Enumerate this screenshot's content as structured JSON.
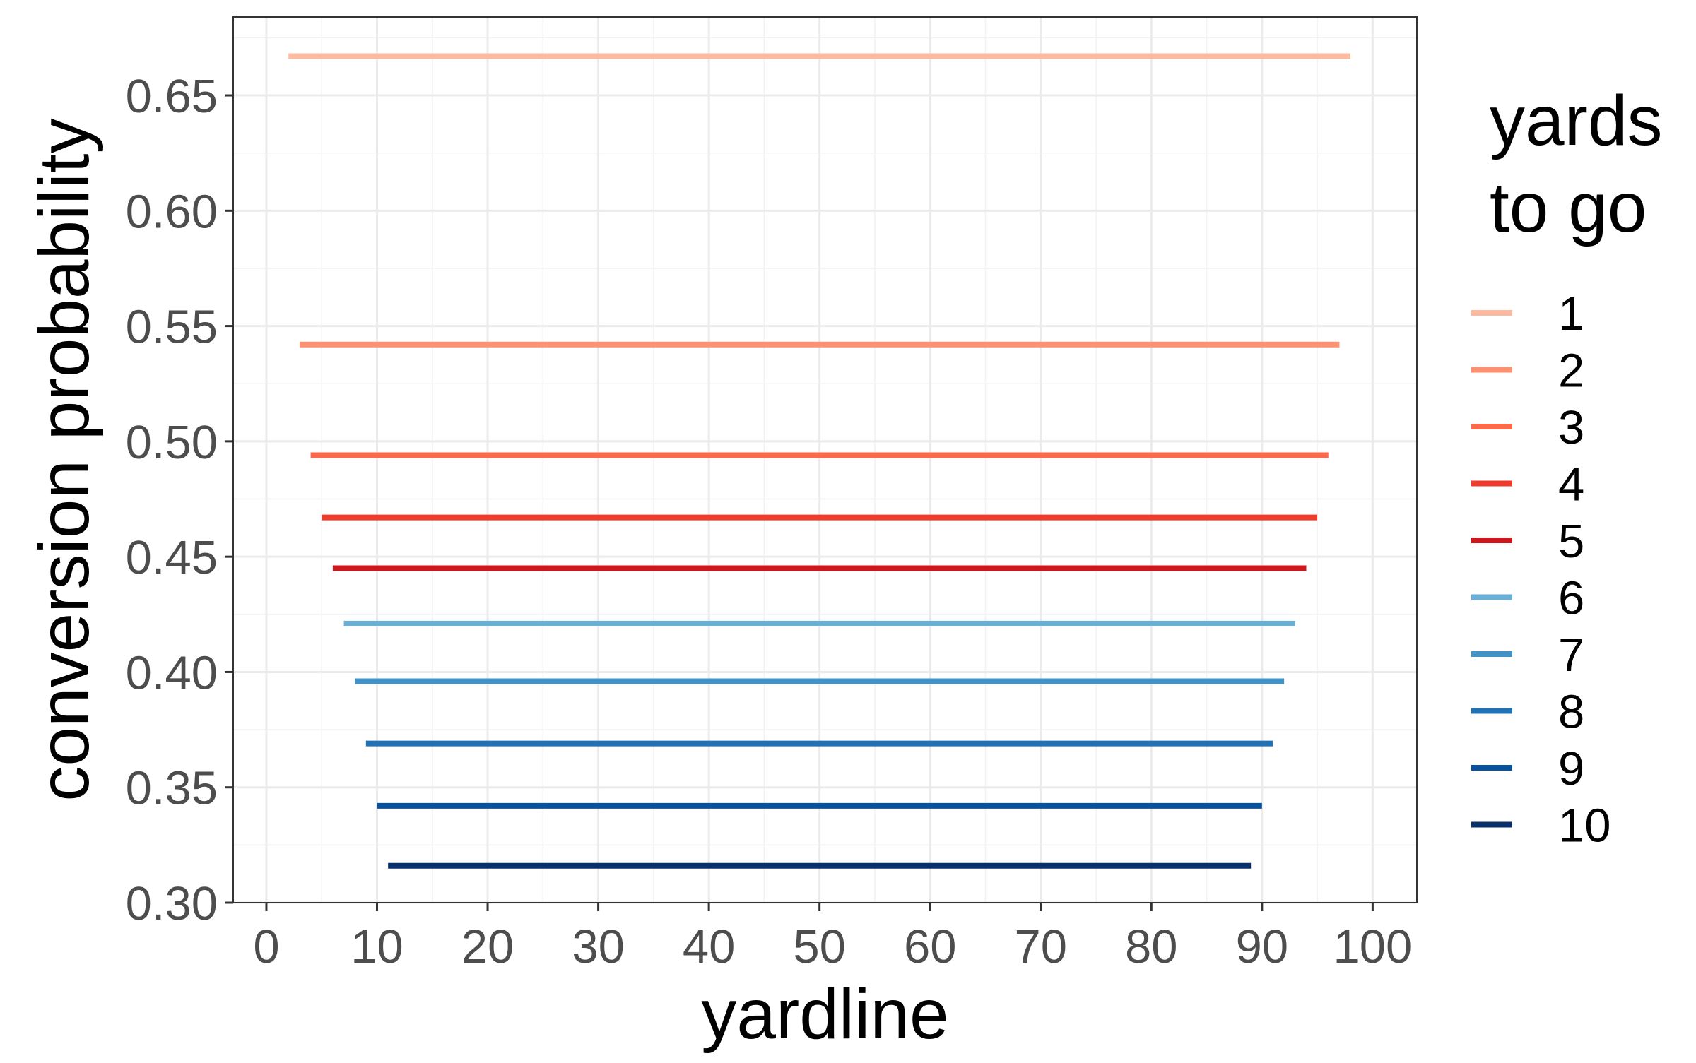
{
  "chart_data": {
    "type": "line",
    "title": "",
    "xlabel": "yardline",
    "ylabel": "conversion probability",
    "xlim": [
      -3,
      104
    ],
    "ylim": [
      0.3,
      0.684
    ],
    "xticks": [
      0,
      10,
      20,
      30,
      40,
      50,
      60,
      70,
      80,
      90,
      100
    ],
    "xtick_labels": [
      "0",
      "10",
      "20",
      "30",
      "40",
      "50",
      "60",
      "70",
      "80",
      "90",
      "100"
    ],
    "yticks": [
      0.3,
      0.35,
      0.4,
      0.45,
      0.5,
      0.55,
      0.6,
      0.65
    ],
    "ytick_labels": [
      "0.30",
      "0.35",
      "0.40",
      "0.45",
      "0.50",
      "0.55",
      "0.60",
      "0.65"
    ],
    "grid": true,
    "legend": {
      "title_lines": [
        "yards",
        "to go"
      ],
      "position": "right"
    },
    "series": [
      {
        "name": "1",
        "color": "#fcbba1",
        "x": [
          2,
          98
        ],
        "y": [
          0.667,
          0.667
        ]
      },
      {
        "name": "2",
        "color": "#fc9272",
        "x": [
          3,
          97
        ],
        "y": [
          0.542,
          0.542
        ]
      },
      {
        "name": "3",
        "color": "#fb6a4a",
        "x": [
          4,
          96
        ],
        "y": [
          0.494,
          0.494
        ]
      },
      {
        "name": "4",
        "color": "#ef3b2c",
        "x": [
          5,
          95
        ],
        "y": [
          0.467,
          0.467
        ]
      },
      {
        "name": "5",
        "color": "#cb181d",
        "x": [
          6,
          94
        ],
        "y": [
          0.445,
          0.445
        ]
      },
      {
        "name": "6",
        "color": "#6baed6",
        "x": [
          7,
          93
        ],
        "y": [
          0.421,
          0.421
        ]
      },
      {
        "name": "7",
        "color": "#4292c6",
        "x": [
          8,
          92
        ],
        "y": [
          0.396,
          0.396
        ]
      },
      {
        "name": "8",
        "color": "#2171b5",
        "x": [
          9,
          91
        ],
        "y": [
          0.369,
          0.369
        ]
      },
      {
        "name": "9",
        "color": "#08519c",
        "x": [
          10,
          90
        ],
        "y": [
          0.342,
          0.342
        ]
      },
      {
        "name": "10",
        "color": "#08306b",
        "x": [
          11,
          89
        ],
        "y": [
          0.316,
          0.316
        ]
      }
    ]
  }
}
